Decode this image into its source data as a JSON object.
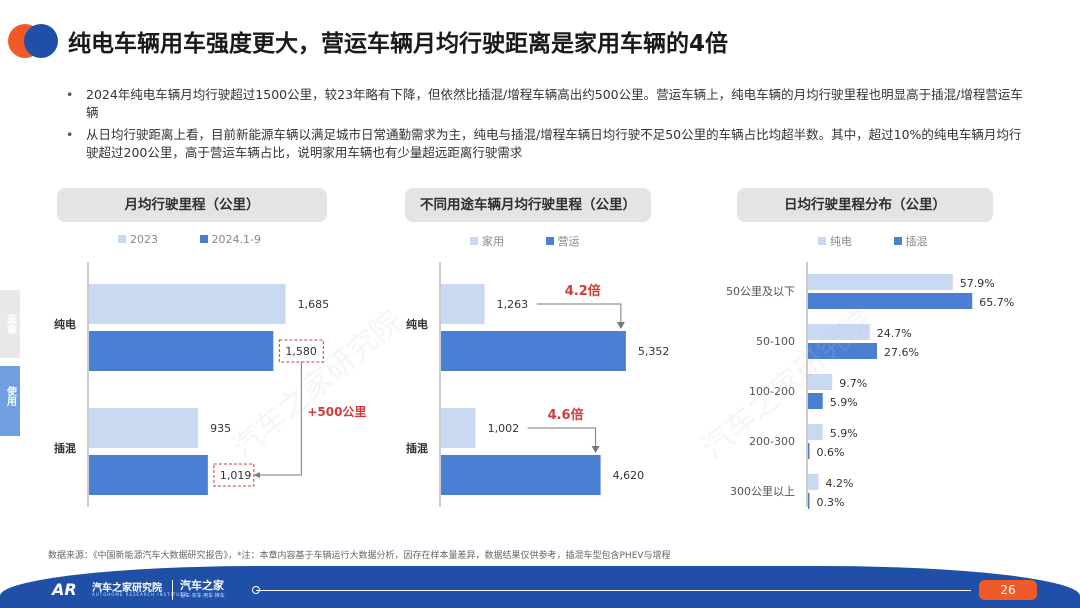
{
  "header": {
    "title": "纯电车辆用车强度更大，营运车辆月均行驶距离是家用车辆的4倍",
    "accent_colors": [
      "#f05a28",
      "#1f4fa6"
    ]
  },
  "bullets": [
    "2024年纯电车辆月均行驶超过1500公里，较23年略有下降，但依然比插混/增程车辆高出约500公里。营运车辆上，纯电车辆的月均行驶里程也明显高于插混/增程营运车辆",
    "从日均行驶距离上看，目前新能源车辆以满足城市日常通勤需求为主，纯电与插混/增程车辆日均行驶不足50公里的车辆占比均超半数。其中，超过10%的纯电车辆月均行驶超过200公里，高于营运车辆占比，说明家用车辆也有少量超远距离行驶需求"
  ],
  "side_tabs": {
    "portrait": "画像",
    "usage": "使用"
  },
  "watermark": "汽车之家研究院",
  "chart_data": [
    {
      "type": "bar",
      "orientation": "horizontal",
      "title": "月均行驶里程（公里）",
      "categories": [
        "纯电",
        "插混"
      ],
      "series": [
        {
          "name": "2023",
          "values": [
            1685,
            935
          ],
          "color": "#c9d9f1"
        },
        {
          "name": "2024.1-9",
          "values": [
            1580,
            1019
          ],
          "color": "#4a7fd4"
        }
      ],
      "xlim": [
        0,
        2400
      ],
      "value_labels": [
        "1,685",
        "1,580",
        "935",
        "1,019"
      ],
      "annotation": "+500公里",
      "legend": "top"
    },
    {
      "type": "bar",
      "orientation": "horizontal",
      "title": "不同用途车辆月均行驶里程（公里）",
      "categories": [
        "纯电",
        "插混"
      ],
      "series": [
        {
          "name": "家用",
          "values": [
            1263,
            1002
          ],
          "color": "#c9d9f1"
        },
        {
          "name": "营运",
          "values": [
            5352,
            4620
          ],
          "color": "#4a7fd4"
        }
      ],
      "xlim": [
        0,
        6600
      ],
      "value_labels": [
        "1,263",
        "5,352",
        "1,002",
        "4,620"
      ],
      "annotations": [
        "4.2倍",
        "4.6倍"
      ],
      "legend": "top"
    },
    {
      "type": "bar",
      "orientation": "horizontal",
      "title": "日均行驶里程分布（公里）",
      "categories": [
        "50公里及以下",
        "50-100",
        "100-200",
        "200-300",
        "300公里以上"
      ],
      "series": [
        {
          "name": "纯电",
          "values": [
            57.9,
            24.7,
            9.7,
            5.9,
            4.2
          ],
          "color": "#c9d9f1"
        },
        {
          "name": "插混",
          "values": [
            65.7,
            27.6,
            5.9,
            0.6,
            0.3
          ],
          "color": "#4a7fd4"
        }
      ],
      "xlim": [
        0,
        100
      ],
      "unit": "%",
      "legend": "top"
    }
  ],
  "source": "数据来源：《中国新能源汽车大数据研究报告》，*注：本章内容基于车辆运行大数据分析，因存在样本量差异，数据结果仅供参考，插混车型包含PHEV与增程",
  "footer": {
    "brand_mark": "AR",
    "brand_name": "汽车之家研究院",
    "brand_sub": "AUTOHOME RESEARCH INSTITUTE",
    "brand_name2": "汽车之家",
    "brand_sub2": "看车·买车·用车·换车",
    "page_number": "26",
    "colors": {
      "bar": "#1f4fa6",
      "page": "#f05a28"
    }
  }
}
